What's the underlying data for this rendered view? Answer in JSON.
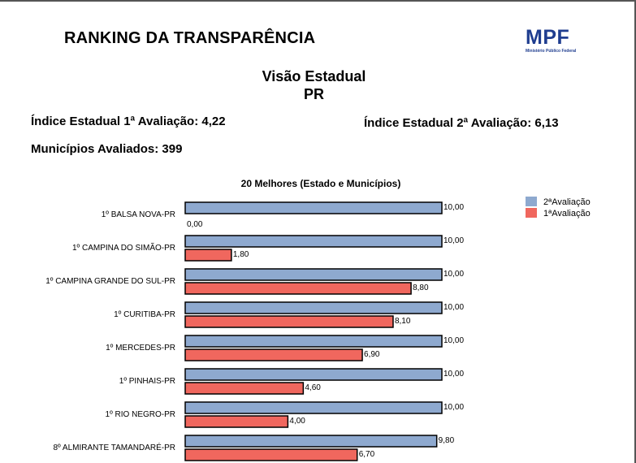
{
  "header": {
    "title": "RANKING DA TRANSPARÊNCIA",
    "logo_mark": "MPF",
    "logo_sub": "Ministério Público Federal"
  },
  "view": {
    "title": "Visão Estadual",
    "state": "PR"
  },
  "stats": {
    "index_first": "Índice Estadual 1ª Avaliação: 4,22",
    "index_second": "Índice Estadual 2ª Avaliação: 6,13",
    "evaluated": "Municípios Avaliados: 399"
  },
  "colors": {
    "second": "#8ea9cf",
    "first": "#f0675e",
    "outline": "#000000"
  },
  "chart_data": {
    "type": "bar",
    "orientation": "horizontal",
    "title": "20 Melhores (Estado e Municípios)",
    "categories": [
      "1º BALSA NOVA-PR",
      "1º CAMPINA DO SIMÃO-PR",
      "1º CAMPINA GRANDE DO SUL-PR",
      "1º CURITIBA-PR",
      "1º MERCEDES-PR",
      "1º PINHAIS-PR",
      "1º RIO NEGRO-PR",
      "8º ALMIRANTE TAMANDARÉ-PR"
    ],
    "series": [
      {
        "name": "2ªAvaliação",
        "color": "#8ea9cf",
        "values": [
          10.0,
          10.0,
          10.0,
          10.0,
          10.0,
          10.0,
          10.0,
          9.8
        ],
        "labels": [
          "10,00",
          "10,00",
          "10,00",
          "10,00",
          "10,00",
          "10,00",
          "10,00",
          "9,80"
        ]
      },
      {
        "name": "1ªAvaliação",
        "color": "#f0675e",
        "values": [
          0.0,
          1.8,
          8.8,
          8.1,
          6.9,
          4.6,
          4.0,
          6.7
        ],
        "labels": [
          "0,00",
          "1,80",
          "8,80",
          "8,10",
          "6,90",
          "4,60",
          "4,00",
          "6,70"
        ]
      }
    ],
    "xlim": [
      0,
      10
    ],
    "grid": false,
    "legend_position": "top-right"
  }
}
